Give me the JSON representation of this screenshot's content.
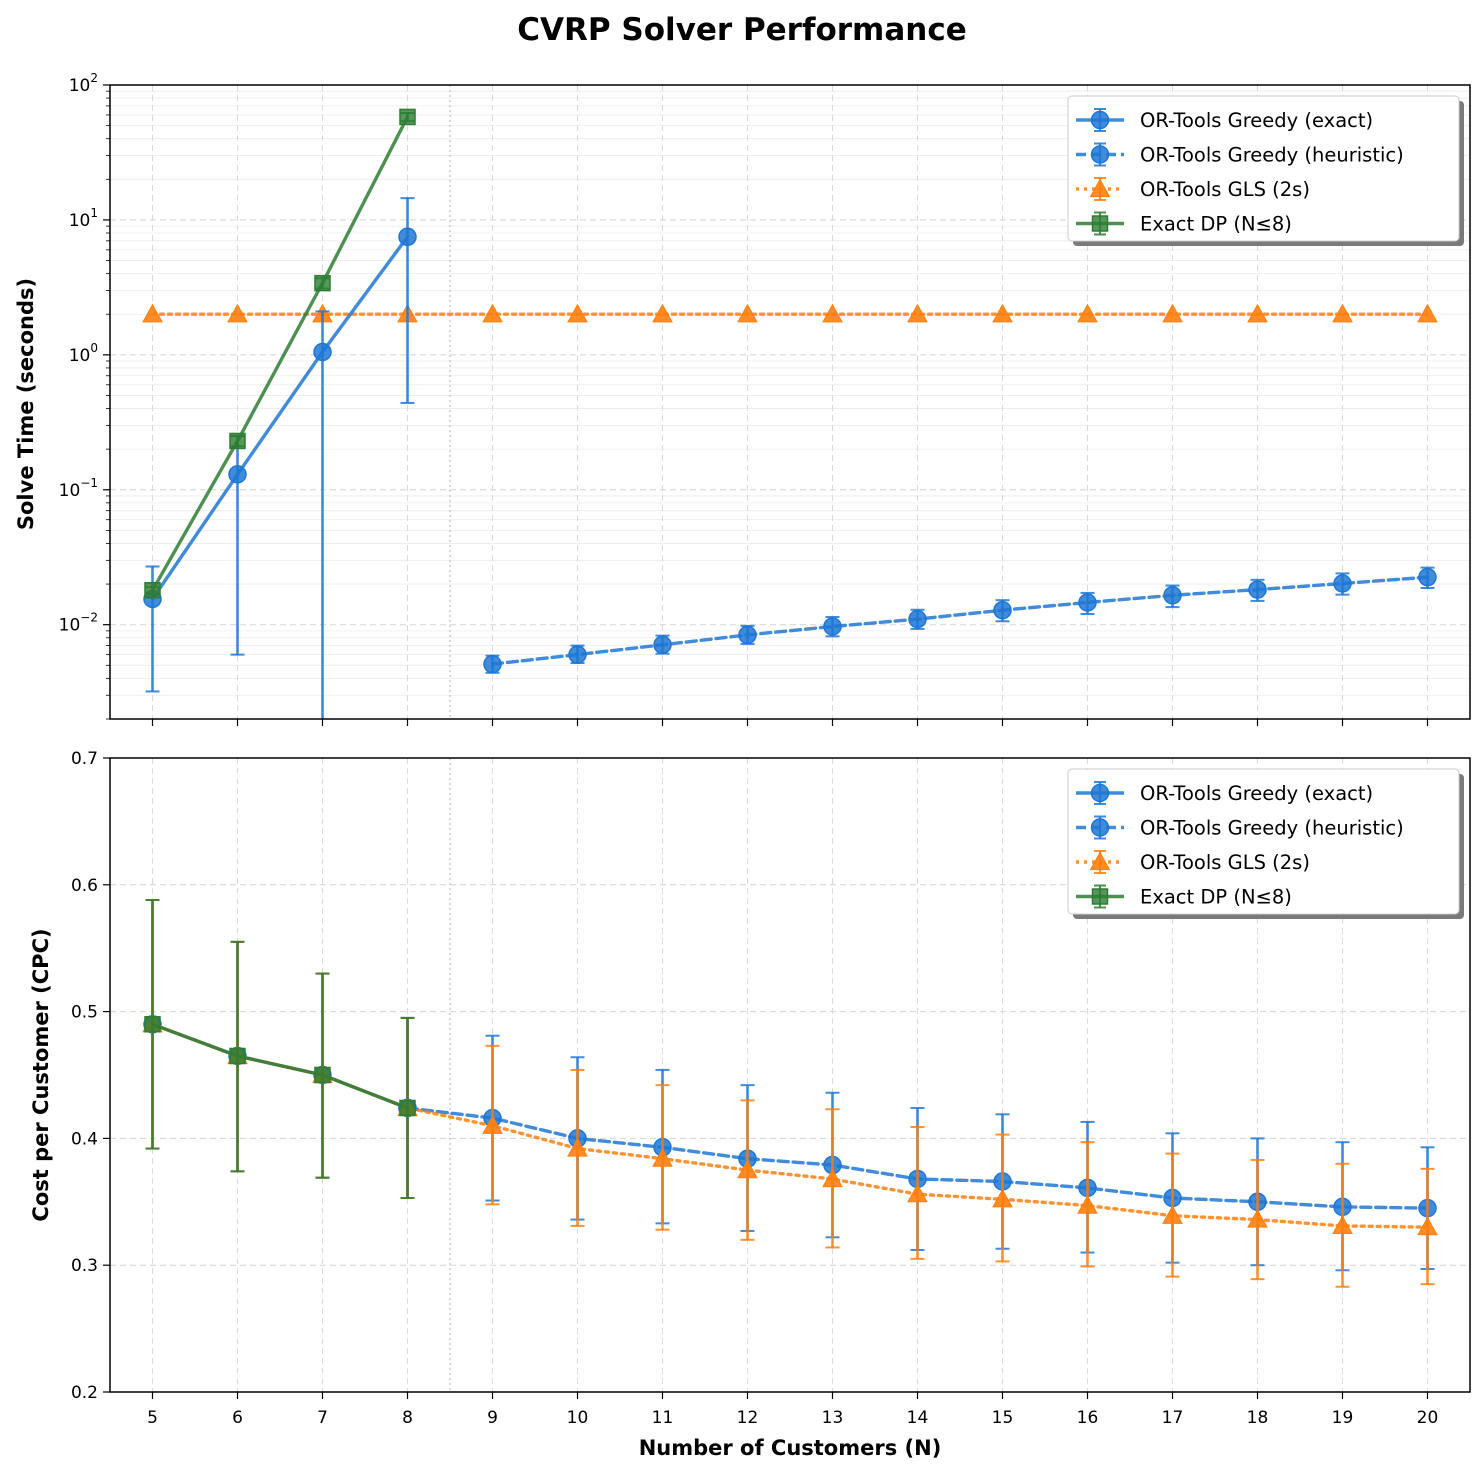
{
  "figure": {
    "title": "CVRP Solver Performance",
    "xlabel": "Number of Customers (N)"
  },
  "colors": {
    "greedy": "#1f77d4",
    "gls": "#ff7f0e",
    "dp": "#2e7d32"
  },
  "legend": {
    "position": "top-right",
    "entries": [
      {
        "name": "OR-Tools Greedy (exact)",
        "style": "solid",
        "marker": "circle",
        "color": "#1f77d4"
      },
      {
        "name": "OR-Tools Greedy (heuristic)",
        "style": "dashed",
        "marker": "circle",
        "color": "#1f77d4"
      },
      {
        "name": "OR-Tools GLS (2s)",
        "style": "dotted",
        "marker": "triangle",
        "color": "#ff7f0e"
      },
      {
        "name": "Exact DP (N≤8)",
        "style": "solid",
        "marker": "square",
        "color": "#2e7d32"
      }
    ]
  },
  "x_ticks": [
    5,
    6,
    7,
    8,
    9,
    10,
    11,
    12,
    13,
    14,
    15,
    16,
    17,
    18,
    19,
    20
  ],
  "chart_data": [
    {
      "type": "line",
      "ylabel": "Solve Time (seconds)",
      "yscale": "log",
      "ylim": [
        0.002,
        100
      ],
      "xlim": [
        4.5,
        20.5
      ],
      "grid": true,
      "legend": "top-right",
      "y_ticks": [
        {
          "value": 0.01,
          "base": "10",
          "exp": "−2"
        },
        {
          "value": 0.1,
          "base": "10",
          "exp": "−1"
        },
        {
          "value": 1,
          "base": "10",
          "exp": "0"
        },
        {
          "value": 10,
          "base": "10",
          "exp": "1"
        },
        {
          "value": 100,
          "base": "10",
          "exp": "2"
        }
      ],
      "series": [
        {
          "name": "OR-Tools GLS (2s)",
          "style": "dotted",
          "marker": "triangle",
          "color": "#ff7f0e",
          "x": [
            5,
            6,
            7,
            8,
            9,
            10,
            11,
            12,
            13,
            14,
            15,
            16,
            17,
            18,
            19,
            20
          ],
          "y": [
            2,
            2,
            2,
            2,
            2,
            2,
            2,
            2,
            2,
            2,
            2,
            2,
            2,
            2,
            2,
            2
          ],
          "lo": [
            2,
            2,
            2,
            2,
            2,
            2,
            2,
            2,
            2,
            2,
            2,
            2,
            2,
            2,
            2,
            2
          ],
          "hi": [
            2,
            2,
            2,
            2,
            2,
            2,
            2,
            2,
            2,
            2,
            2,
            2,
            2,
            2,
            2,
            2
          ]
        },
        {
          "name": "OR-Tools Greedy (exact)",
          "style": "solid",
          "marker": "circle",
          "color": "#1f77d4",
          "x": [
            5,
            6,
            7,
            8
          ],
          "y": [
            0.0155,
            0.13,
            1.05,
            7.5
          ],
          "lo": [
            0.0032,
            0.006,
            0.0015,
            0.44
          ],
          "hi": [
            0.027,
            0.25,
            2.1,
            14.5
          ]
        },
        {
          "name": "OR-Tools Greedy (heuristic)",
          "style": "dashed",
          "marker": "circle",
          "color": "#1f77d4",
          "x": [
            9,
            10,
            11,
            12,
            13,
            14,
            15,
            16,
            17,
            18,
            19,
            20
          ],
          "y": [
            0.0051,
            0.006,
            0.0071,
            0.0084,
            0.0097,
            0.011,
            0.0128,
            0.0146,
            0.0165,
            0.0182,
            0.0202,
            0.0225
          ],
          "lo": [
            0.0044,
            0.0052,
            0.0061,
            0.0072,
            0.0082,
            0.0093,
            0.0106,
            0.012,
            0.0135,
            0.015,
            0.0167,
            0.0187
          ],
          "hi": [
            0.0059,
            0.007,
            0.0083,
            0.0098,
            0.0114,
            0.0129,
            0.0152,
            0.0172,
            0.0195,
            0.0215,
            0.024,
            0.0265
          ]
        },
        {
          "name": "Exact DP (N≤8)",
          "style": "solid",
          "marker": "square",
          "color": "#2e7d32",
          "x": [
            5,
            6,
            7,
            8
          ],
          "y": [
            0.018,
            0.23,
            3.4,
            58
          ],
          "lo": [
            0.017,
            0.21,
            3.1,
            54
          ],
          "hi": [
            0.019,
            0.25,
            3.7,
            62
          ]
        }
      ]
    },
    {
      "type": "line",
      "ylabel": "Cost per Customer (CPC)",
      "yscale": "linear",
      "ylim": [
        0.2,
        0.7
      ],
      "xlim": [
        4.5,
        20.5
      ],
      "grid": true,
      "legend": "top-right",
      "y_ticks": [
        "0.2",
        "0.3",
        "0.4",
        "0.5",
        "0.6",
        "0.7"
      ],
      "series": [
        {
          "name": "OR-Tools Greedy (exact)",
          "style": "solid",
          "marker": "circle",
          "color": "#1f77d4",
          "x": [
            5,
            6,
            7,
            8
          ],
          "y": [
            0.49,
            0.465,
            0.45,
            0.424
          ],
          "lo": [
            0.392,
            0.374,
            0.369,
            0.353
          ],
          "hi": [
            0.588,
            0.555,
            0.53,
            0.495
          ]
        },
        {
          "name": "OR-Tools Greedy (heuristic)",
          "style": "dashed",
          "marker": "circle",
          "color": "#1f77d4",
          "x": [
            8,
            9,
            10,
            11,
            12,
            13,
            14,
            15,
            16,
            17,
            18,
            19,
            20
          ],
          "y": [
            0.424,
            0.416,
            0.4,
            0.393,
            0.384,
            0.379,
            0.368,
            0.366,
            0.361,
            0.353,
            0.35,
            0.346,
            0.345
          ],
          "lo": [
            0.353,
            0.351,
            0.336,
            0.333,
            0.327,
            0.322,
            0.312,
            0.313,
            0.31,
            0.302,
            0.3,
            0.296,
            0.297
          ],
          "hi": [
            0.495,
            0.481,
            0.464,
            0.454,
            0.442,
            0.436,
            0.424,
            0.419,
            0.413,
            0.404,
            0.4,
            0.397,
            0.393
          ]
        },
        {
          "name": "OR-Tools GLS (2s)",
          "style": "dotted",
          "marker": "triangle",
          "color": "#ff7f0e",
          "x": [
            5,
            6,
            7,
            8,
            9,
            10,
            11,
            12,
            13,
            14,
            15,
            16,
            17,
            18,
            19,
            20
          ],
          "y": [
            0.49,
            0.465,
            0.45,
            0.424,
            0.41,
            0.392,
            0.384,
            0.375,
            0.368,
            0.356,
            0.352,
            0.347,
            0.339,
            0.336,
            0.331,
            0.33
          ],
          "lo": [
            0.392,
            0.374,
            0.369,
            0.353,
            0.348,
            0.331,
            0.328,
            0.32,
            0.314,
            0.305,
            0.303,
            0.299,
            0.291,
            0.289,
            0.283,
            0.285
          ],
          "hi": [
            0.588,
            0.555,
            0.53,
            0.495,
            0.473,
            0.454,
            0.442,
            0.43,
            0.423,
            0.409,
            0.403,
            0.397,
            0.388,
            0.383,
            0.38,
            0.376
          ]
        },
        {
          "name": "Exact DP (N≤8)",
          "style": "solid",
          "marker": "square",
          "color": "#2e7d32",
          "x": [
            5,
            6,
            7,
            8
          ],
          "y": [
            0.49,
            0.465,
            0.45,
            0.424
          ],
          "lo": [
            0.392,
            0.374,
            0.369,
            0.353
          ],
          "hi": [
            0.588,
            0.555,
            0.53,
            0.495
          ]
        }
      ]
    }
  ]
}
